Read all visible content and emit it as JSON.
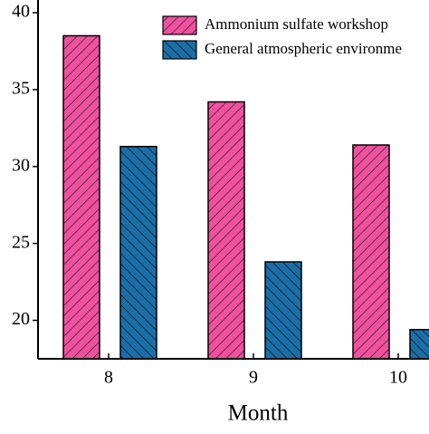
{
  "chart_data": {
    "type": "bar",
    "x_label": "Month",
    "categories": [
      "8",
      "9",
      "10"
    ],
    "series": [
      {
        "name": "Ammonium sulfate workshop",
        "color": "#f0509f",
        "hatch": "/",
        "values": [
          38.5,
          34.2,
          31.4
        ]
      },
      {
        "name": "General atmospheric environme",
        "color": "#1a6fa8",
        "hatch": "\\",
        "values": [
          31.3,
          23.8,
          19.4
        ]
      }
    ],
    "ylim": [
      17.5,
      40
    ],
    "yticks": [
      20,
      25,
      30,
      35,
      40
    ],
    "grid": false
  }
}
